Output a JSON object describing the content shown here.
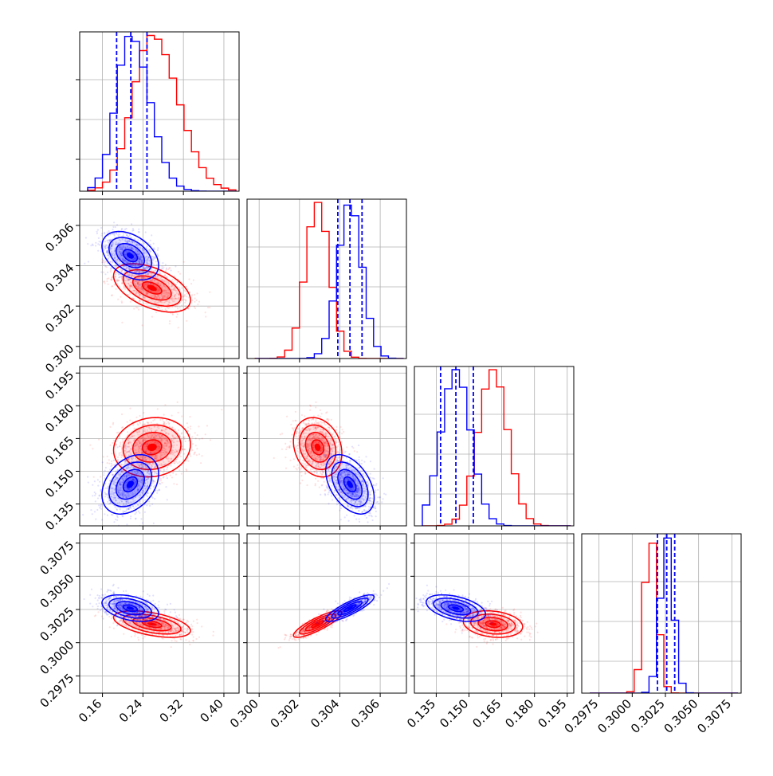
{
  "chart_data": {
    "type": "corner",
    "grid": true,
    "colors": {
      "series_a": "#ff0000",
      "series_b": "#0000ff"
    },
    "series": [
      {
        "color": "#ff0000",
        "mean": [
          0.258,
          0.3029,
          0.161,
          0.3014
        ],
        "sd": [
          0.038,
          0.0006,
          0.0068,
          0.0005
        ],
        "corr": {
          "0-1": -0.5,
          "0-2": 0.1,
          "0-3": -0.5,
          "1-2": -0.2,
          "1-3": 0.85,
          "2-3": -0.2
        }
      },
      {
        "color": "#0000ff",
        "mean": [
          0.215,
          0.3045,
          0.144,
          0.3026
        ],
        "sd": [
          0.028,
          0.0006,
          0.0068,
          0.0005
        ],
        "corr": {
          "0-1": -0.4,
          "0-2": 0.35,
          "0-3": -0.4,
          "1-2": -0.45,
          "1-3": 0.85,
          "2-3": -0.45
        }
      }
    ],
    "quantiles": [
      [
        0.188,
        0.216,
        0.248
      ],
      [
        0.3039,
        0.3045,
        0.3051
      ],
      [
        0.137,
        0.144,
        0.152
      ],
      [
        0.3019,
        0.3026,
        0.3032
      ]
    ],
    "parameters": [
      {
        "range": [
          0.115,
          0.43
        ],
        "ticks": [
          "0.16",
          "0.24",
          "0.32",
          "0.40"
        ],
        "tick_values": [
          0.16,
          0.24,
          0.32,
          0.4
        ]
      },
      {
        "range": [
          0.2994,
          0.3073
        ],
        "ticks": [
          "0.300",
          "0.302",
          "0.304",
          "0.306"
        ],
        "tick_values": [
          0.3,
          0.302,
          0.304,
          0.306
        ]
      },
      {
        "range": [
          0.125,
          0.198
        ],
        "ticks": [
          "0.135",
          "0.150",
          "0.165",
          "0.180",
          "0.195"
        ],
        "tick_values": [
          0.135,
          0.15,
          0.165,
          0.18,
          0.195
        ]
      },
      {
        "range": [
          0.2962,
          0.3082
        ],
        "ticks": [
          "0.2975",
          "0.3000",
          "0.3025",
          "0.3050",
          "0.3075"
        ],
        "tick_values": [
          0.2975,
          0.3,
          0.3025,
          0.305,
          0.3075
        ]
      }
    ]
  }
}
